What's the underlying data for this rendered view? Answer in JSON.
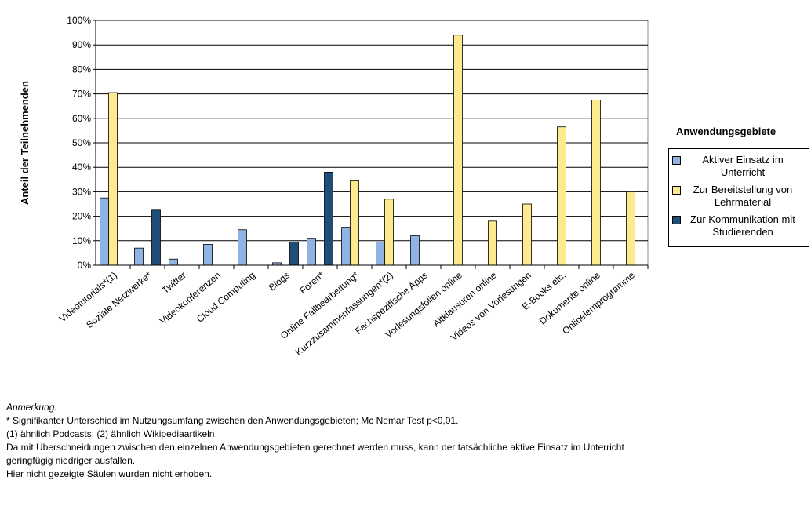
{
  "chart_data": {
    "type": "bar",
    "ylabel": "Anteil der Teilnehmenden",
    "categories": [
      "Videotutorials*(1)",
      "Soziale Netzwerke*",
      "Twitter",
      "Videokonferenzen",
      "Cloud Computing",
      "Blogs",
      "Foren*",
      "Online Fallbearbeitung*",
      "Kurzzusammenfassungen*(2)",
      "Fachspezifische Apps",
      "Vorlesungsfolien online",
      "Altklausuren online",
      "Videos von Vorlesungen",
      "E-Books etc.",
      "Dokumente online",
      "Onlinelernprogramme"
    ],
    "series": [
      {
        "name": "Aktiver Einsatz im Unterricht",
        "color": "#8fb4e3",
        "values": [
          27.5,
          7,
          2.5,
          8.5,
          14.5,
          1,
          11,
          15.5,
          9.5,
          12,
          null,
          null,
          null,
          null,
          null,
          null
        ]
      },
      {
        "name": "Zur Bereitstellung von Lehrmaterial",
        "color": "#fde98e",
        "values": [
          70.5,
          null,
          null,
          null,
          null,
          null,
          null,
          34.5,
          27,
          null,
          94,
          18,
          25,
          56.5,
          67.5,
          30
        ]
      },
      {
        "name": "Zur Kommunikation mit Studierenden",
        "color": "#1f4e79",
        "values": [
          null,
          22.5,
          null,
          null,
          null,
          9.5,
          38,
          null,
          null,
          null,
          null,
          null,
          null,
          null,
          null,
          null
        ]
      }
    ],
    "ylim": [
      0,
      100
    ],
    "yticks": [
      {
        "value": 0,
        "label": "0%"
      },
      {
        "value": 10,
        "label": "10%"
      },
      {
        "value": 20,
        "label": "20%"
      },
      {
        "value": 30,
        "label": "30%"
      },
      {
        "value": 40,
        "label": "40%"
      },
      {
        "value": 50,
        "label": "50%"
      },
      {
        "value": 60,
        "label": "60%"
      },
      {
        "value": 70,
        "label": "70%"
      },
      {
        "value": 80,
        "label": "80%"
      },
      {
        "value": 90,
        "label": "90%"
      },
      {
        "value": 100,
        "label": "100%"
      }
    ],
    "grid": true,
    "legend_title": "Anwendungsgebiete",
    "legend_position": "right"
  },
  "notes": {
    "heading": "Anmerkung.",
    "lines": [
      "* Signifikanter Unterschied im Nutzungsumfang zwischen den Anwendungsgebieten; Mc Nemar Test p<0,01.",
      "(1) ähnlich Podcasts; (2) ähnlich Wikipediaartikeln",
      "Da mit Überschneidungen zwischen den einzelnen Anwendungsgebieten gerechnet werden muss, kann der tatsächliche aktive Einsatz im Unterricht",
      "geringfügig niedriger ausfallen.",
      "Hier nicht gezeigte Säulen wurden nicht erhoben."
    ]
  }
}
